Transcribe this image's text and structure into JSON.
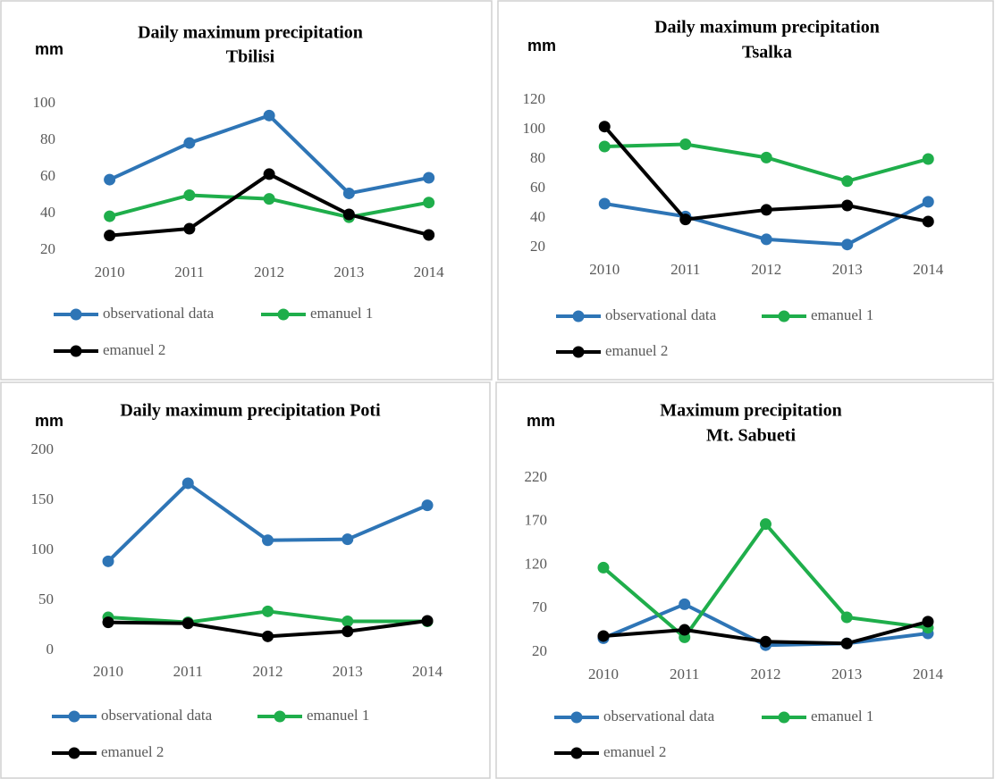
{
  "chart_data": [
    {
      "type": "line",
      "title": [
        "Daily maximum precipitation",
        "Tbilisi"
      ],
      "y_label": "mm",
      "categories": [
        "2010",
        "2011",
        "2012",
        "2013",
        "2014"
      ],
      "ylim": [
        20,
        100
      ],
      "yticks": [
        20,
        40,
        60,
        80,
        100
      ],
      "grid": false,
      "series": [
        {
          "name": "observational data",
          "color": "#2e75b6",
          "values": [
            58.5,
            78.5,
            93.5,
            51,
            59.5
          ]
        },
        {
          "name": "emanuel 1",
          "color": "#1fae4b",
          "values": [
            38.5,
            50,
            48,
            38,
            46
          ]
        },
        {
          "name": "emanuel 2",
          "color": "#000000",
          "values": [
            28,
            31.7,
            61.5,
            39.5,
            28.3
          ]
        }
      ]
    },
    {
      "type": "line",
      "title": [
        "Daily maximum precipitation",
        "Tsalka"
      ],
      "y_label": "mm",
      "categories": [
        "2010",
        "2011",
        "2012",
        "2013",
        "2014"
      ],
      "ylim": [
        20,
        120
      ],
      "yticks": [
        20,
        40,
        60,
        80,
        100,
        120
      ],
      "grid": false,
      "series": [
        {
          "name": "observational data",
          "color": "#2e75b6",
          "values": [
            49.7,
            41,
            25.5,
            22,
            51
          ]
        },
        {
          "name": "emanuel 1",
          "color": "#1fae4b",
          "values": [
            88.5,
            90,
            81,
            65,
            80
          ]
        },
        {
          "name": "emanuel 2",
          "color": "#000000",
          "values": [
            102,
            39,
            45.5,
            48.5,
            37.6
          ]
        }
      ]
    },
    {
      "type": "line",
      "title": [
        "Daily maximum  precipitation Poti"
      ],
      "y_label": "mm",
      "categories": [
        "2010",
        "2011",
        "2012",
        "2013",
        "2014"
      ],
      "ylim": [
        0,
        200
      ],
      "yticks": [
        0,
        50,
        100,
        150,
        200
      ],
      "grid": false,
      "series": [
        {
          "name": "observational data",
          "color": "#2e75b6",
          "values": [
            89,
            167,
            110,
            111,
            145
          ]
        },
        {
          "name": "emanuel 1",
          "color": "#1fae4b",
          "values": [
            33,
            28,
            39,
            29,
            29
          ]
        },
        {
          "name": "emanuel 2",
          "color": "#000000",
          "values": [
            28,
            27,
            14,
            19,
            29.5
          ]
        }
      ]
    },
    {
      "type": "line",
      "title": [
        "Maximum precipitation",
        "Mt. Sabueti"
      ],
      "y_label": "mm",
      "categories": [
        "2010",
        "2011",
        "2012",
        "2013",
        "2014"
      ],
      "ylim": [
        20,
        220
      ],
      "yticks": [
        20,
        70,
        120,
        170,
        220
      ],
      "grid": false,
      "series": [
        {
          "name": "observational data",
          "color": "#2e75b6",
          "values": [
            36,
            75,
            28,
            30,
            41.5
          ]
        },
        {
          "name": "emanuel 1",
          "color": "#1fae4b",
          "values": [
            117,
            37,
            167,
            60,
            48
          ]
        },
        {
          "name": "emanuel 2",
          "color": "#000000",
          "values": [
            38.5,
            45.6,
            32,
            30,
            55
          ]
        }
      ]
    }
  ]
}
